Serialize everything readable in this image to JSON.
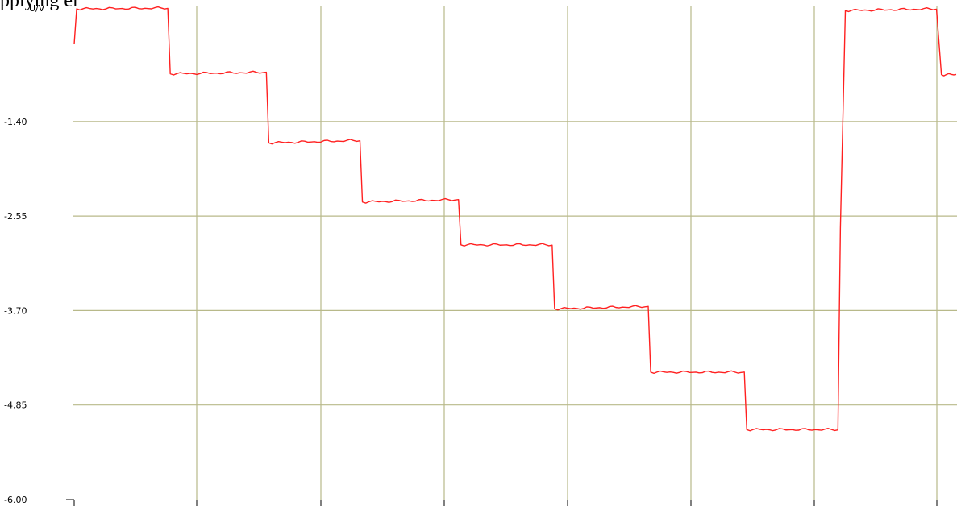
{
  "header_fragment": "pplying ei",
  "chart_data": {
    "type": "line",
    "ylabel": "U/V",
    "xlabel": "",
    "ylim": [
      -6.0,
      0.0
    ],
    "y_ticks": [
      "-1.40",
      "-2.55",
      "-3.70",
      "-4.85",
      "-6.00"
    ],
    "y_tick_values": [
      -1.4,
      -2.55,
      -3.7,
      -4.85,
      -6.0
    ],
    "x_gridlines": 8,
    "grid": true,
    "grid_color": "#b8b98a",
    "line_color": "#ff2020",
    "series": [
      {
        "points": [
          [
            0.0,
            -0.46
          ],
          [
            0.01,
            -0.03
          ],
          [
            0.38,
            -0.02
          ],
          [
            0.39,
            -0.82
          ],
          [
            0.78,
            -0.8
          ],
          [
            0.79,
            -1.66
          ],
          [
            1.16,
            -1.63
          ],
          [
            1.17,
            -2.38
          ],
          [
            1.56,
            -2.35
          ],
          [
            1.57,
            -2.9
          ],
          [
            1.94,
            -2.9
          ],
          [
            1.95,
            -3.68
          ],
          [
            2.33,
            -3.65
          ],
          [
            2.34,
            -4.45
          ],
          [
            2.72,
            -4.45
          ],
          [
            2.73,
            -5.15
          ],
          [
            3.1,
            -5.15
          ],
          [
            3.11,
            -2.7
          ],
          [
            3.13,
            -0.05
          ],
          [
            3.5,
            -0.03
          ],
          [
            3.52,
            -0.83
          ],
          [
            3.58,
            -0.83
          ]
        ]
      }
    ]
  }
}
